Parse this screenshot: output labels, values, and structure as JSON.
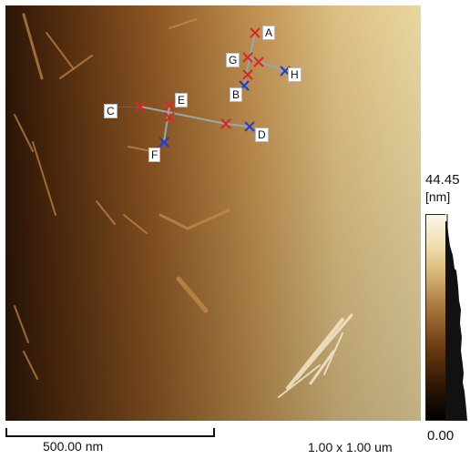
{
  "image": {
    "scale_bar_label": "500.00 nm",
    "scan_size_label": "1.00 x 1.00 um",
    "colorbar": {
      "max_label": "44.45",
      "unit_label": "[nm]",
      "min_label": "0.00"
    }
  },
  "markers": [
    {
      "label": "A"
    },
    {
      "label": "B"
    },
    {
      "label": "C"
    },
    {
      "label": "D"
    },
    {
      "label": "E"
    },
    {
      "label": "F"
    },
    {
      "label": "G"
    },
    {
      "label": "H"
    }
  ],
  "colors": {
    "marker_red": "#d62828",
    "marker_blue": "#1f3fd0",
    "line_gray": "#9aa6a8"
  }
}
